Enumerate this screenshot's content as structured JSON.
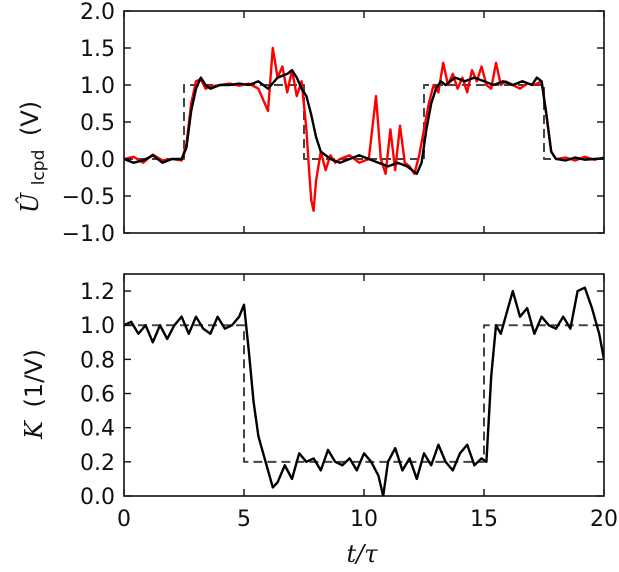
{
  "chart_data": [
    {
      "type": "line",
      "panel": "top",
      "title": "",
      "xlabel": "",
      "ylabel": "Û_lcpd (V)",
      "ylabel_parts": {
        "symbol": "Û",
        "subscript": "lcpd",
        "unit": "(V)"
      },
      "xlim": [
        0,
        20
      ],
      "ylim": [
        -1.0,
        2.0
      ],
      "xticks": [
        0,
        5,
        10,
        15,
        20
      ],
      "yticks": [
        "−1.0",
        "−0.5",
        "0.0",
        "0.5",
        "1.0",
        "1.5",
        "2.0"
      ],
      "ytick_values": [
        -1.0,
        -0.5,
        0.0,
        0.5,
        1.0,
        1.5,
        2.0
      ],
      "grid": false,
      "series": [
        {
          "style": "dashed",
          "color": "#444444",
          "x": [
            0,
            2.5,
            2.5,
            7.5,
            7.5,
            12.5,
            12.5,
            17.5,
            17.5,
            20
          ],
          "y": [
            0,
            0,
            1,
            1,
            0,
            0,
            1,
            1,
            0,
            0
          ]
        },
        {
          "style": "solid",
          "color": "#ff0000",
          "x": [
            0,
            0.4,
            0.8,
            1.2,
            1.6,
            2.0,
            2.4,
            2.6,
            2.8,
            3.0,
            3.2,
            3.4,
            3.6,
            4.0,
            4.4,
            4.8,
            5.2,
            5.6,
            5.8,
            6.0,
            6.2,
            6.4,
            6.6,
            6.8,
            7.0,
            7.2,
            7.4,
            7.6,
            7.7,
            7.8,
            7.9,
            8.0,
            8.2,
            8.4,
            8.6,
            8.8,
            9.0,
            9.4,
            9.8,
            10.2,
            10.5,
            10.7,
            10.9,
            11.1,
            11.3,
            11.5,
            11.7,
            11.9,
            12.1,
            12.3,
            12.5,
            12.7,
            12.9,
            13.1,
            13.3,
            13.5,
            13.7,
            13.9,
            14.1,
            14.3,
            14.5,
            14.7,
            14.9,
            15.1,
            15.3,
            15.5,
            15.7,
            15.9,
            16.2,
            16.5,
            16.8,
            17.1,
            17.4,
            17.6,
            17.8,
            18.0,
            18.4,
            18.8,
            19.2,
            19.6,
            20.0
          ],
          "y": [
            0.0,
            0.03,
            -0.05,
            0.06,
            -0.02,
            0.0,
            -0.02,
            0.2,
            0.75,
            1.05,
            1.08,
            0.95,
            0.98,
            1.0,
            1.02,
            0.99,
            1.02,
            0.95,
            0.8,
            0.65,
            1.5,
            1.1,
            1.25,
            0.9,
            1.2,
            0.85,
            1.05,
            0.4,
            -0.1,
            -0.55,
            -0.7,
            -0.3,
            0.1,
            -0.15,
            0.05,
            -0.05,
            0.0,
            0.05,
            -0.05,
            0.0,
            0.85,
            0.0,
            -0.2,
            0.4,
            -0.15,
            0.45,
            -0.05,
            -0.1,
            -0.2,
            0.05,
            0.4,
            0.75,
            1.0,
            0.9,
            1.3,
            1.0,
            1.15,
            0.95,
            1.1,
            0.9,
            1.2,
            1.05,
            1.25,
            1.0,
            0.95,
            1.3,
            1.0,
            1.05,
            1.0,
            0.95,
            1.02,
            1.0,
            1.05,
            0.6,
            0.1,
            0.0,
            0.02,
            -0.02,
            0.03,
            -0.01,
            0.02
          ]
        },
        {
          "style": "solid",
          "color": "#000000",
          "x": [
            0,
            0.4,
            0.8,
            1.2,
            1.6,
            2.0,
            2.4,
            2.6,
            2.8,
            3.0,
            3.2,
            3.4,
            3.6,
            4.0,
            4.4,
            4.8,
            5.2,
            5.6,
            6.0,
            6.4,
            6.8,
            7.0,
            7.2,
            7.4,
            7.6,
            7.8,
            8.0,
            8.2,
            8.6,
            9.0,
            9.4,
            9.8,
            10.2,
            10.6,
            11.0,
            11.4,
            11.8,
            12.2,
            12.4,
            12.6,
            12.8,
            13.0,
            13.2,
            13.4,
            13.8,
            14.2,
            14.6,
            15.0,
            15.4,
            15.8,
            16.2,
            16.6,
            17.0,
            17.2,
            17.4,
            17.6,
            17.8,
            18.0,
            18.4,
            18.8,
            19.2,
            19.6,
            20.0
          ],
          "y": [
            0.0,
            -0.05,
            -0.02,
            0.05,
            -0.05,
            0.0,
            0.0,
            0.15,
            0.65,
            0.95,
            1.1,
            1.0,
            0.95,
            1.0,
            1.0,
            1.02,
            1.0,
            1.05,
            0.95,
            1.1,
            1.15,
            1.2,
            1.1,
            0.95,
            0.85,
            0.6,
            0.3,
            0.1,
            0.0,
            -0.05,
            0.0,
            0.05,
            0.0,
            -0.05,
            -0.1,
            -0.05,
            -0.1,
            -0.2,
            -0.05,
            0.4,
            0.75,
            0.95,
            1.05,
            1.0,
            1.1,
            1.05,
            1.1,
            1.05,
            1.0,
            1.05,
            1.0,
            1.05,
            1.0,
            1.1,
            1.05,
            0.6,
            0.1,
            0.0,
            -0.02,
            0.02,
            -0.01,
            0.0,
            0.01
          ]
        }
      ]
    },
    {
      "type": "line",
      "panel": "bottom",
      "title": "",
      "xlabel": "t/τ",
      "ylabel": "K (1/V)",
      "ylabel_parts": {
        "symbol": "K",
        "unit": "(1/V)"
      },
      "xlim": [
        0,
        20
      ],
      "ylim": [
        0.0,
        1.3
      ],
      "xticks": [
        0,
        5,
        10,
        15,
        20
      ],
      "xtick_labels": [
        "0",
        "5",
        "10",
        "15",
        "20"
      ],
      "yticks": [
        "0.0",
        "0.2",
        "0.4",
        "0.6",
        "0.8",
        "1.0",
        "1.2"
      ],
      "ytick_values": [
        0.0,
        0.2,
        0.4,
        0.6,
        0.8,
        1.0,
        1.2
      ],
      "grid": false,
      "series": [
        {
          "style": "dashed",
          "color": "#444444",
          "x": [
            0,
            5,
            5,
            15,
            15,
            20
          ],
          "y": [
            1.0,
            1.0,
            0.2,
            0.2,
            1.0,
            1.0
          ]
        },
        {
          "style": "solid",
          "color": "#000000",
          "x": [
            0,
            0.3,
            0.6,
            0.9,
            1.2,
            1.5,
            1.8,
            2.1,
            2.4,
            2.7,
            3.0,
            3.3,
            3.6,
            3.9,
            4.2,
            4.5,
            4.8,
            5.0,
            5.2,
            5.4,
            5.6,
            5.8,
            6.0,
            6.2,
            6.4,
            6.7,
            7.0,
            7.3,
            7.6,
            7.9,
            8.2,
            8.5,
            8.8,
            9.1,
            9.4,
            9.7,
            10.0,
            10.3,
            10.6,
            10.8,
            11.0,
            11.3,
            11.6,
            11.9,
            12.2,
            12.5,
            12.8,
            13.1,
            13.4,
            13.7,
            14.0,
            14.3,
            14.6,
            14.9,
            15.1,
            15.3,
            15.5,
            15.7,
            15.9,
            16.2,
            16.5,
            16.8,
            17.1,
            17.4,
            17.7,
            18.0,
            18.3,
            18.6,
            18.9,
            19.2,
            19.5,
            19.8,
            20.0
          ],
          "y": [
            1.0,
            1.02,
            0.95,
            1.0,
            0.9,
            1.0,
            0.92,
            1.0,
            1.05,
            0.95,
            1.05,
            0.98,
            0.95,
            1.05,
            0.98,
            1.0,
            1.05,
            1.12,
            0.85,
            0.55,
            0.35,
            0.25,
            0.15,
            0.05,
            0.08,
            0.18,
            0.1,
            0.25,
            0.2,
            0.22,
            0.15,
            0.27,
            0.2,
            0.18,
            0.22,
            0.15,
            0.25,
            0.2,
            0.12,
            0.0,
            0.2,
            0.28,
            0.15,
            0.22,
            0.1,
            0.25,
            0.18,
            0.3,
            0.2,
            0.15,
            0.25,
            0.3,
            0.18,
            0.22,
            0.2,
            0.7,
            1.0,
            0.95,
            1.05,
            1.2,
            1.05,
            1.1,
            0.95,
            1.05,
            1.0,
            0.98,
            1.05,
            0.98,
            1.2,
            1.22,
            1.1,
            0.95,
            0.8
          ]
        }
      ]
    }
  ]
}
